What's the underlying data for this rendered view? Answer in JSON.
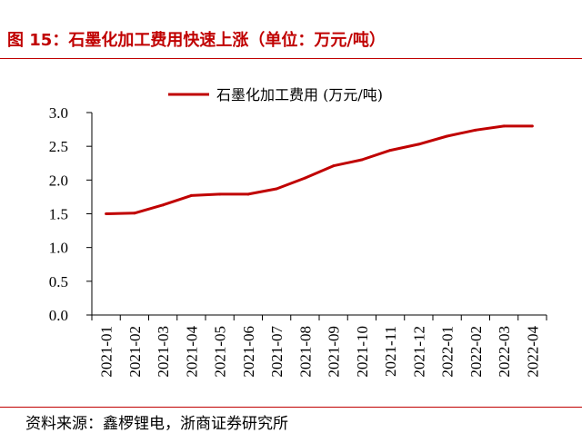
{
  "header": {
    "title": "图 15：石墨化加工费用快速上涨（单位：万元/吨）"
  },
  "footer": {
    "source": "资料来源：鑫椤锂电，浙商证券研究所"
  },
  "colors": {
    "accent": "#c00000",
    "series": "#c00000",
    "axis": "#000000"
  },
  "chart_data": {
    "type": "line",
    "title": "",
    "xlabel": "",
    "ylabel": "",
    "categories": [
      "2021-01",
      "2021-02",
      "2021-03",
      "2021-04",
      "2021-05",
      "2021-06",
      "2021-07",
      "2021-08",
      "2021-09",
      "2021-10",
      "2021-11",
      "2021-12",
      "2022-01",
      "2022-02",
      "2022-03",
      "2022-04"
    ],
    "series": [
      {
        "name": "石墨化加工费用 (万元/吨)",
        "values": [
          1.5,
          1.51,
          1.63,
          1.77,
          1.79,
          1.79,
          1.87,
          2.03,
          2.21,
          2.3,
          2.44,
          2.53,
          2.65,
          2.74,
          2.8,
          2.8
        ]
      }
    ],
    "ylim": [
      0,
      3.0
    ],
    "yticks": [
      "0.0",
      "0.5",
      "1.0",
      "1.5",
      "2.0",
      "2.5",
      "3.0"
    ],
    "grid": false,
    "legend": "top"
  }
}
